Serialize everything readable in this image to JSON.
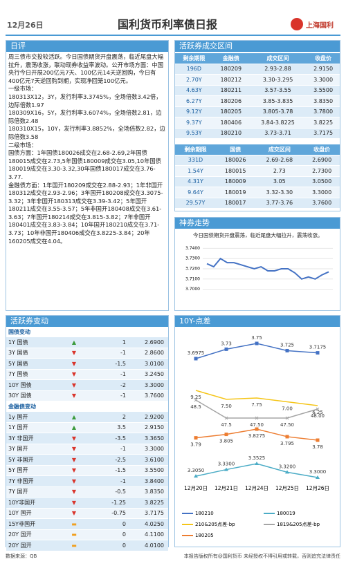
{
  "header": {
    "date": "12月26日",
    "title": "国利货币利率债日报",
    "logo": "上海国利"
  },
  "daily_review": {
    "title": "日评",
    "paragraphs": [
      "周三债市交投较活跃。今日国债期货开盘震荡，临近尾盘大幅拉升，震荡收涨，联动现券收益率波动。公开市场方面：中国央行今日开展200亿元7天、100亿元14天逆回购，今日有400亿元7天逆回购到期，实现净回笼100亿元。",
      "一级市场：",
      "180313X12，3Y，发行利率3.3745%，全场倍数3.42倍，边际倍数1.97",
      "180309X16，5Y，发行利率3.6074%，全场倍数2.81，边际倍数2.48",
      "180310X15，10Y，发行利率3.8852%，全场倍数2.82，边际倍数3.58",
      "二级市场：",
      "国债方面：1年国债180026成交在2.68-2.69,2年国债180015成交在2.73,5年国债180009成交在3.05,10年国债180019成交在3.30-3.32,30年国债180017成交在3.76-3.77.",
      "金融债方面：1年国开180209成交在2.88-2.93；1年非国开180312成交在2.93-2.96；3年国开180208成交在3.3075-3.32；3年非国开180313成交在3.39-3.42；5年国开180211成交在3.55-3.57；5年非国开180408成交在3.61-3.63；7年国开180214成交在3.815-3.82；7年非国开180401成交在3.83-3.84；10年国开180210成交在3.71-3.73；10年非国开180406成交在3.8225-3.84；20年160205成交在4.04。"
    ]
  },
  "active_bonds": {
    "title": "活跃券成交区间",
    "tables": [
      {
        "columns": [
          "剩余期限",
          "金融债",
          "成交区间",
          "收盘价"
        ],
        "rows": [
          [
            "196D",
            "180209",
            "2.93-2.88",
            "2.9150"
          ],
          [
            "2.70Y",
            "180212",
            "3.30-3.295",
            "3.3000"
          ],
          [
            "4.63Y",
            "180211",
            "3.57-3.55",
            "3.5500"
          ],
          [
            "6.27Y",
            "180206",
            "3.85-3.835",
            "3.8350"
          ],
          [
            "9.12Y",
            "180205",
            "3.805-3.78",
            "3.7800"
          ],
          [
            "9.37Y",
            "180406",
            "3.84-3.8225",
            "3.8225"
          ],
          [
            "9.53Y",
            "180210",
            "3.73-3.71",
            "3.7175"
          ]
        ]
      },
      {
        "columns": [
          "剩余期限",
          "国债",
          "成交区间",
          "收盘价"
        ],
        "rows": [
          [
            "331D",
            "180026",
            "2.69-2.68",
            "2.6900"
          ],
          [
            "1.54Y",
            "180015",
            "2.73",
            "2.7300"
          ],
          [
            "4.31Y",
            "180009",
            "3.05",
            "3.0500"
          ],
          [
            "9.64Y",
            "180019",
            "3.32-3.30",
            "3.3000"
          ],
          [
            "29.57Y",
            "180017",
            "3.77-3.76",
            "3.7600"
          ]
        ]
      }
    ]
  },
  "trend": {
    "title": "神券走势",
    "caption": "今日国债期货开盘震荡，临近尾盘大幅拉升，震荡收涨。",
    "chart": {
      "type": "line",
      "color": "#4472c4",
      "values": [
        3.725,
        3.722,
        3.73,
        3.726,
        3.726,
        3.724,
        3.722,
        3.72,
        3.722,
        3.718,
        3.718,
        3.72,
        3.72,
        3.716,
        3.71,
        3.712,
        3.71,
        3.714,
        3.717
      ],
      "ylim": [
        3.695,
        3.745
      ],
      "yticks": [
        {
          "value": 3.7,
          "label": "3.7000"
        },
        {
          "value": 3.71,
          "label": "3.7100"
        },
        {
          "value": 3.72,
          "label": "3.7200"
        },
        {
          "value": 3.73,
          "label": "3.7300"
        },
        {
          "value": 3.74,
          "label": "3.7400"
        }
      ]
    }
  },
  "changes": {
    "title": "活跃券变动",
    "sections": [
      {
        "name": "国债变动",
        "rows": [
          [
            "1Y  国债",
            1,
            "2.6900"
          ],
          [
            "3Y  国债",
            -1,
            "2.8600"
          ],
          [
            "5Y  国债",
            -1.5,
            "3.0100"
          ],
          [
            "7Y  国债",
            -1,
            "3.2450"
          ],
          [
            "10Y  国债",
            -2,
            "3.3000"
          ],
          [
            "30Y  国债",
            -1,
            "3.7600"
          ]
        ]
      },
      {
        "name": "金融债变动",
        "rows": [
          [
            "1y  国开",
            2,
            "2.9200"
          ],
          [
            "1Y  国开",
            3.5,
            "2.9150"
          ],
          [
            "3Y 非国开",
            -3.5,
            "3.3650"
          ],
          [
            "3Y  国开",
            -1,
            "3.3000"
          ],
          [
            "5Y 非国开",
            -2.5,
            "3.6100"
          ],
          [
            "5Y  国开",
            -1.5,
            "3.5500"
          ],
          [
            "7Y 非国开",
            -1,
            "3.8400"
          ],
          [
            "7Y  国开",
            -0.5,
            "3.8350"
          ],
          [
            "10Y非国开",
            -1.25,
            "3.8225"
          ],
          [
            "10Y  国开",
            -0.75,
            "3.7175"
          ],
          [
            "15Y非国开",
            0,
            "4.0250"
          ],
          [
            "20Y  国开",
            0,
            "4.1100"
          ],
          [
            "20Y  国开",
            0,
            "4.0100"
          ]
        ]
      }
    ]
  },
  "spread_chart": {
    "title": "10Y-点差",
    "chart": {
      "type": "line",
      "categories": [
        "12月20日",
        "12月21日",
        "12月24日",
        "12月25日",
        "12月26日"
      ],
      "series": [
        {
          "name": "180210",
          "color": "#4472c4",
          "values": [
            3.6975,
            3.73,
            3.75,
            3.725,
            3.7175
          ],
          "value_labels": [
            "3.6975",
            "3.73",
            "3.75",
            "3.725",
            "3.7175"
          ]
        },
        {
          "name": "180019",
          "color": "#4bacc6",
          "values": [
            3.305,
            3.33,
            3.3525,
            3.32,
            3.3
          ],
          "value_labels": [
            "3.3050",
            "3.3300",
            "3.3525",
            "3.3200",
            "3.3000"
          ]
        },
        {
          "name": "210&205点差-bp",
          "color": "#f5c518",
          "values": [
            9.25,
            7.5,
            7.75,
            7.0,
            6.25
          ],
          "value_labels": [
            "9.25",
            "7.50",
            "7.75",
            "7.00",
            "6.25"
          ]
        },
        {
          "name": "1819&205点差-bp",
          "color": "#a5a5a5",
          "values": [
            48.5,
            47.5,
            47.5,
            47.5,
            48.0
          ],
          "value_labels": [
            "48.5",
            "47.5",
            "47.50",
            "47.50",
            "48.00"
          ]
        },
        {
          "name": "180205",
          "color": "#ed7d31",
          "values": [
            3.79,
            3.805,
            3.8275,
            3.795,
            3.78
          ],
          "value_labels": [
            "3.79",
            "3.805",
            "3.8275",
            "3.795",
            "3.78"
          ]
        }
      ]
    }
  },
  "footer": {
    "source": "数据来源：QB",
    "copyright": "本报告版权所有@国利货币 未经授权不得引用或转载，否则追究法律责任"
  }
}
